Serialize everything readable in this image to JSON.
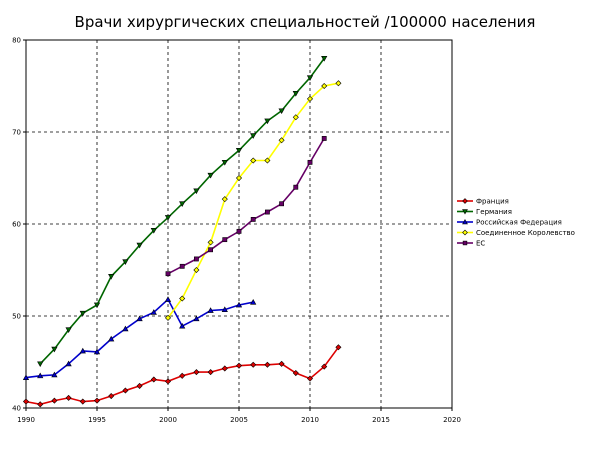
{
  "chart_data": {
    "type": "line",
    "title": "Врачи хирургических специальностей  /100000 населения",
    "xlabel": "",
    "ylabel": "",
    "xlim": [
      1990,
      2020
    ],
    "ylim": [
      40,
      80
    ],
    "x_ticks": [
      "1990",
      "1995",
      "2000",
      "2005",
      "2010",
      "2015",
      "2020"
    ],
    "y_ticks": [
      "40",
      "50",
      "60",
      "70",
      "80"
    ],
    "grid": true,
    "legend_position": "right",
    "series": [
      {
        "name": "Франция",
        "color": "#dd0000",
        "marker": "diamond",
        "points": [
          [
            1990,
            40.7
          ],
          [
            1991,
            40.4
          ],
          [
            1992,
            40.8
          ],
          [
            1993,
            41.1
          ],
          [
            1994,
            40.7
          ],
          [
            1995,
            40.8
          ],
          [
            1996,
            41.3
          ],
          [
            1997,
            41.9
          ],
          [
            1998,
            42.4
          ],
          [
            1999,
            43.1
          ],
          [
            2000,
            42.9
          ],
          [
            2001,
            43.5
          ],
          [
            2002,
            43.9
          ],
          [
            2003,
            43.9
          ],
          [
            2004,
            44.3
          ],
          [
            2005,
            44.6
          ],
          [
            2006,
            44.7
          ],
          [
            2007,
            44.7
          ],
          [
            2008,
            44.8
          ],
          [
            2009,
            43.8
          ],
          [
            2010,
            43.2
          ],
          [
            2011,
            44.5
          ],
          [
            2012,
            46.6
          ]
        ]
      },
      {
        "name": "Германия",
        "color": "#006600",
        "marker": "triangle-down",
        "points": [
          [
            1991,
            44.8
          ],
          [
            1992,
            46.4
          ],
          [
            1993,
            48.5
          ],
          [
            1994,
            50.3
          ],
          [
            1995,
            51.2
          ],
          [
            1996,
            54.3
          ],
          [
            1997,
            55.9
          ],
          [
            1998,
            57.7
          ],
          [
            1999,
            59.3
          ],
          [
            2000,
            60.7
          ],
          [
            2001,
            62.2
          ],
          [
            2002,
            63.6
          ],
          [
            2003,
            65.3
          ],
          [
            2004,
            66.7
          ],
          [
            2005,
            68.0
          ],
          [
            2006,
            69.6
          ],
          [
            2007,
            71.2
          ],
          [
            2008,
            72.3
          ],
          [
            2009,
            74.2
          ],
          [
            2010,
            75.9
          ],
          [
            2011,
            78.0
          ]
        ]
      },
      {
        "name": "Российская Федерация",
        "color": "#0000cc",
        "marker": "triangle-up",
        "points": [
          [
            1990,
            43.3
          ],
          [
            1991,
            43.5
          ],
          [
            1992,
            43.6
          ],
          [
            1993,
            44.8
          ],
          [
            1994,
            46.2
          ],
          [
            1995,
            46.1
          ],
          [
            1996,
            47.5
          ],
          [
            1997,
            48.6
          ],
          [
            1998,
            49.7
          ],
          [
            1999,
            50.4
          ],
          [
            2000,
            51.8
          ],
          [
            2001,
            48.9
          ],
          [
            2002,
            49.7
          ],
          [
            2003,
            50.6
          ],
          [
            2004,
            50.7
          ],
          [
            2005,
            51.2
          ],
          [
            2006,
            51.5
          ]
        ]
      },
      {
        "name": "Соединенное Королевство",
        "color": "#ffff00",
        "marker": "diamond",
        "points": [
          [
            2000,
            49.8
          ],
          [
            2001,
            51.9
          ],
          [
            2002,
            55.0
          ],
          [
            2003,
            58.0
          ],
          [
            2004,
            62.7
          ],
          [
            2005,
            65.0
          ],
          [
            2006,
            66.9
          ],
          [
            2007,
            66.9
          ],
          [
            2008,
            69.1
          ],
          [
            2009,
            71.6
          ],
          [
            2010,
            73.6
          ],
          [
            2011,
            75.0
          ],
          [
            2012,
            75.3
          ]
        ]
      },
      {
        "name": "ЕС",
        "color": "#660066",
        "marker": "square",
        "points": [
          [
            2000,
            54.6
          ],
          [
            2001,
            55.4
          ],
          [
            2002,
            56.2
          ],
          [
            2003,
            57.2
          ],
          [
            2004,
            58.3
          ],
          [
            2005,
            59.2
          ],
          [
            2006,
            60.5
          ],
          [
            2007,
            61.3
          ],
          [
            2008,
            62.2
          ],
          [
            2009,
            64.0
          ],
          [
            2010,
            66.7
          ],
          [
            2011,
            69.3
          ]
        ]
      }
    ]
  }
}
